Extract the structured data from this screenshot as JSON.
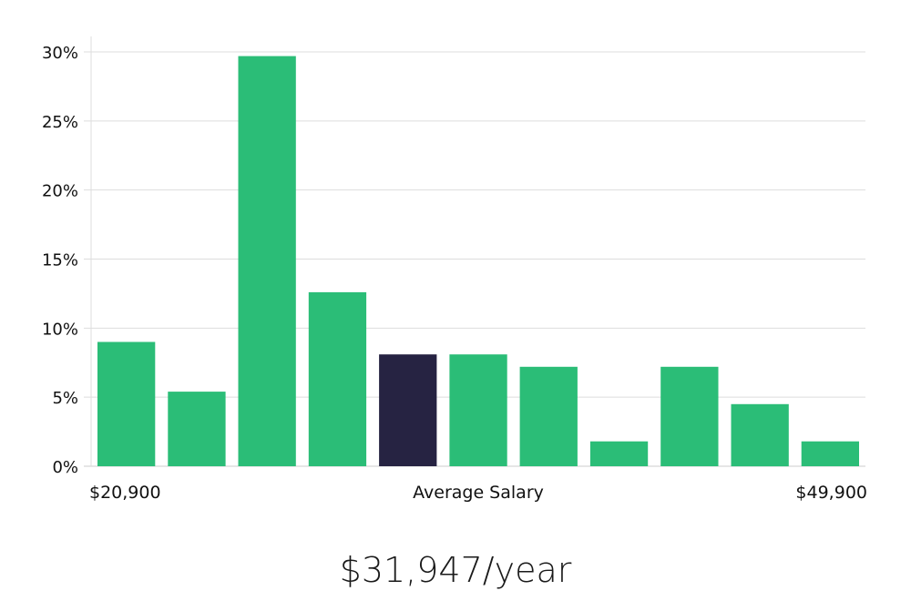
{
  "chart_data": {
    "type": "bar",
    "title": "",
    "xlabel": "Average Salary",
    "ylabel": "",
    "x_min_label": "$20,900",
    "x_max_label": "$49,900",
    "ylim": [
      0,
      30
    ],
    "yticks": [
      0,
      5,
      10,
      15,
      20,
      25,
      30
    ],
    "ytick_labels": [
      "0%",
      "5%",
      "10%",
      "15%",
      "20%",
      "25%",
      "30%"
    ],
    "grid": true,
    "values": [
      9,
      5.4,
      29.7,
      12.6,
      8.1,
      8.1,
      7.2,
      1.8,
      7.2,
      4.5,
      1.8
    ],
    "highlight_index": 4,
    "colors": {
      "bar": "#2bbd77",
      "highlight": "#262342",
      "grid": "#dddddd",
      "axis": "#cccccc"
    }
  },
  "summary": {
    "salary_text": "$31,947/year"
  }
}
